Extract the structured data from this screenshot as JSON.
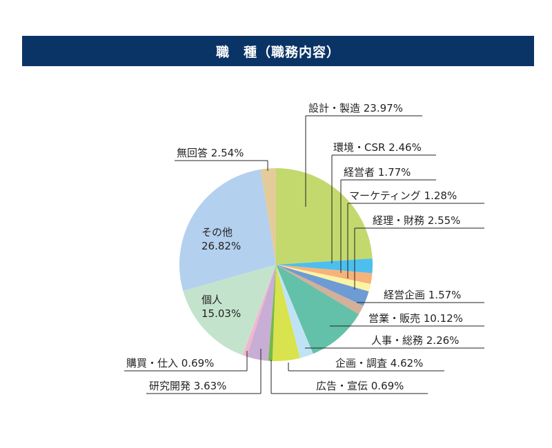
{
  "header": {
    "title": "職　種（職務内容）"
  },
  "colors": {
    "header_bg": "#0b3466",
    "leader": "#231f20"
  },
  "chart_data": {
    "type": "pie",
    "title": "職　種（職務内容）",
    "start": "12 o'clock, clockwise",
    "slices": [
      {
        "name": "設計・製造",
        "value": 23.97,
        "pct": "23.97%",
        "color": "#c3d96e"
      },
      {
        "name": "環境・CSR",
        "value": 2.46,
        "pct": "2.46%",
        "color": "#4dbfee"
      },
      {
        "name": "経営者",
        "value": 1.77,
        "pct": "1.77%",
        "color": "#f7b27a"
      },
      {
        "name": "マーケティング",
        "value": 1.28,
        "pct": "1.28%",
        "color": "#fbf3a2"
      },
      {
        "name": "経理・財務",
        "value": 2.55,
        "pct": "2.55%",
        "color": "#6d9bd4"
      },
      {
        "name": "経営企画",
        "value": 1.57,
        "pct": "1.57%",
        "color": "#d2b09a"
      },
      {
        "name": "営業・販売",
        "value": 10.12,
        "pct": "10.12%",
        "color": "#62c1a8"
      },
      {
        "name": "人事・総務",
        "value": 2.26,
        "pct": "2.26%",
        "color": "#bfe3f5"
      },
      {
        "name": "企画・調査",
        "value": 4.62,
        "pct": "4.62%",
        "color": "#d8e34d"
      },
      {
        "name": "広告・宣伝",
        "value": 0.69,
        "pct": "0.69%",
        "color": "#74b94a"
      },
      {
        "name": "研究開発",
        "value": 3.63,
        "pct": "3.63%",
        "color": "#c8aed5"
      },
      {
        "name": "購買・仕入",
        "value": 0.69,
        "pct": "0.69%",
        "color": "#f3b6cd"
      },
      {
        "name": "個人",
        "value": 15.03,
        "pct": "15.03%",
        "color": "#c4e3cd"
      },
      {
        "name": "その他",
        "value": 26.82,
        "pct": "26.82%",
        "color": "#b3d0ee"
      },
      {
        "name": "無回答",
        "value": 2.54,
        "pct": "2.54%",
        "color": "#e4cc9a"
      }
    ]
  }
}
